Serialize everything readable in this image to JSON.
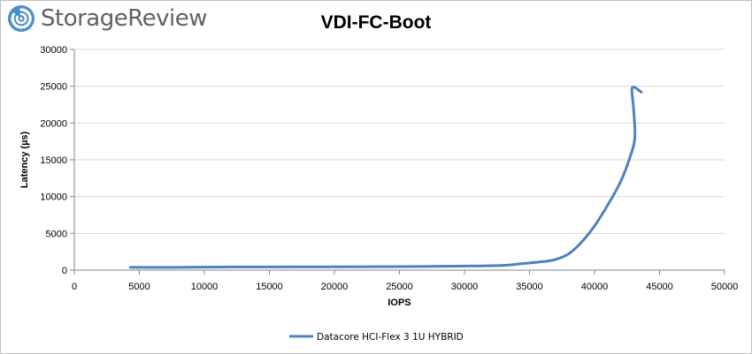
{
  "branding": {
    "logo_text": "StorageReview",
    "logo_icon": "storagereview-swirl-icon",
    "logo_color": "#4a90c8"
  },
  "chart_data": {
    "type": "line",
    "title": "VDI-FC-Boot",
    "xlabel": "IOPS",
    "ylabel": "Latency (µs)",
    "xlim": [
      0,
      50000
    ],
    "ylim": [
      0,
      30000
    ],
    "xticks": [
      0,
      5000,
      10000,
      15000,
      20000,
      25000,
      30000,
      35000,
      40000,
      45000,
      50000
    ],
    "yticks": [
      0,
      5000,
      10000,
      15000,
      20000,
      25000,
      30000
    ],
    "grid": "horizontal",
    "legend_position": "bottom",
    "series": [
      {
        "name": "Datacore HCI-Flex 3 1U HYBRID",
        "color": "#4f81bd",
        "points": [
          [
            4300,
            370
          ],
          [
            8000,
            380
          ],
          [
            12000,
            430
          ],
          [
            15000,
            440
          ],
          [
            20000,
            450
          ],
          [
            25000,
            480
          ],
          [
            30000,
            550
          ],
          [
            33000,
            650
          ],
          [
            34500,
            900
          ],
          [
            36000,
            1150
          ],
          [
            37000,
            1450
          ],
          [
            38000,
            2200
          ],
          [
            39000,
            3800
          ],
          [
            40000,
            6000
          ],
          [
            41000,
            8800
          ],
          [
            42000,
            12000
          ],
          [
            42700,
            15200
          ],
          [
            43100,
            18000
          ],
          [
            43000,
            22000
          ],
          [
            42900,
            24800
          ],
          [
            43600,
            24200
          ]
        ]
      }
    ]
  }
}
